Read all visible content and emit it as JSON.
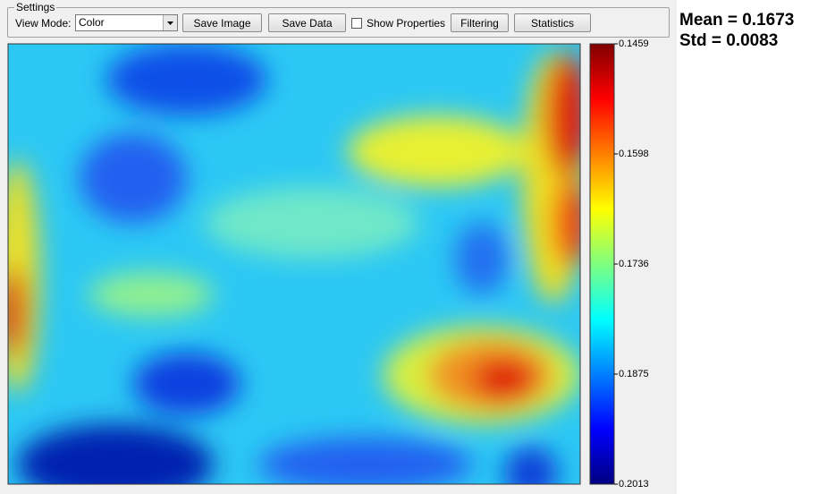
{
  "settings": {
    "legend": "Settings",
    "view_mode_label": "View Mode:",
    "view_mode_value": "Color",
    "save_image": "Save Image",
    "save_data": "Save Data",
    "show_properties": "Show Properties",
    "filtering": "Filtering",
    "statistics": "Statistics"
  },
  "colorbar": {
    "ticks": [
      "0.1459",
      "0.1598",
      "0.1736",
      "0.1875",
      "0.2013"
    ]
  },
  "stats": {
    "mean": "Mean = 0.1673",
    "std": "Std = 0.0083"
  }
}
